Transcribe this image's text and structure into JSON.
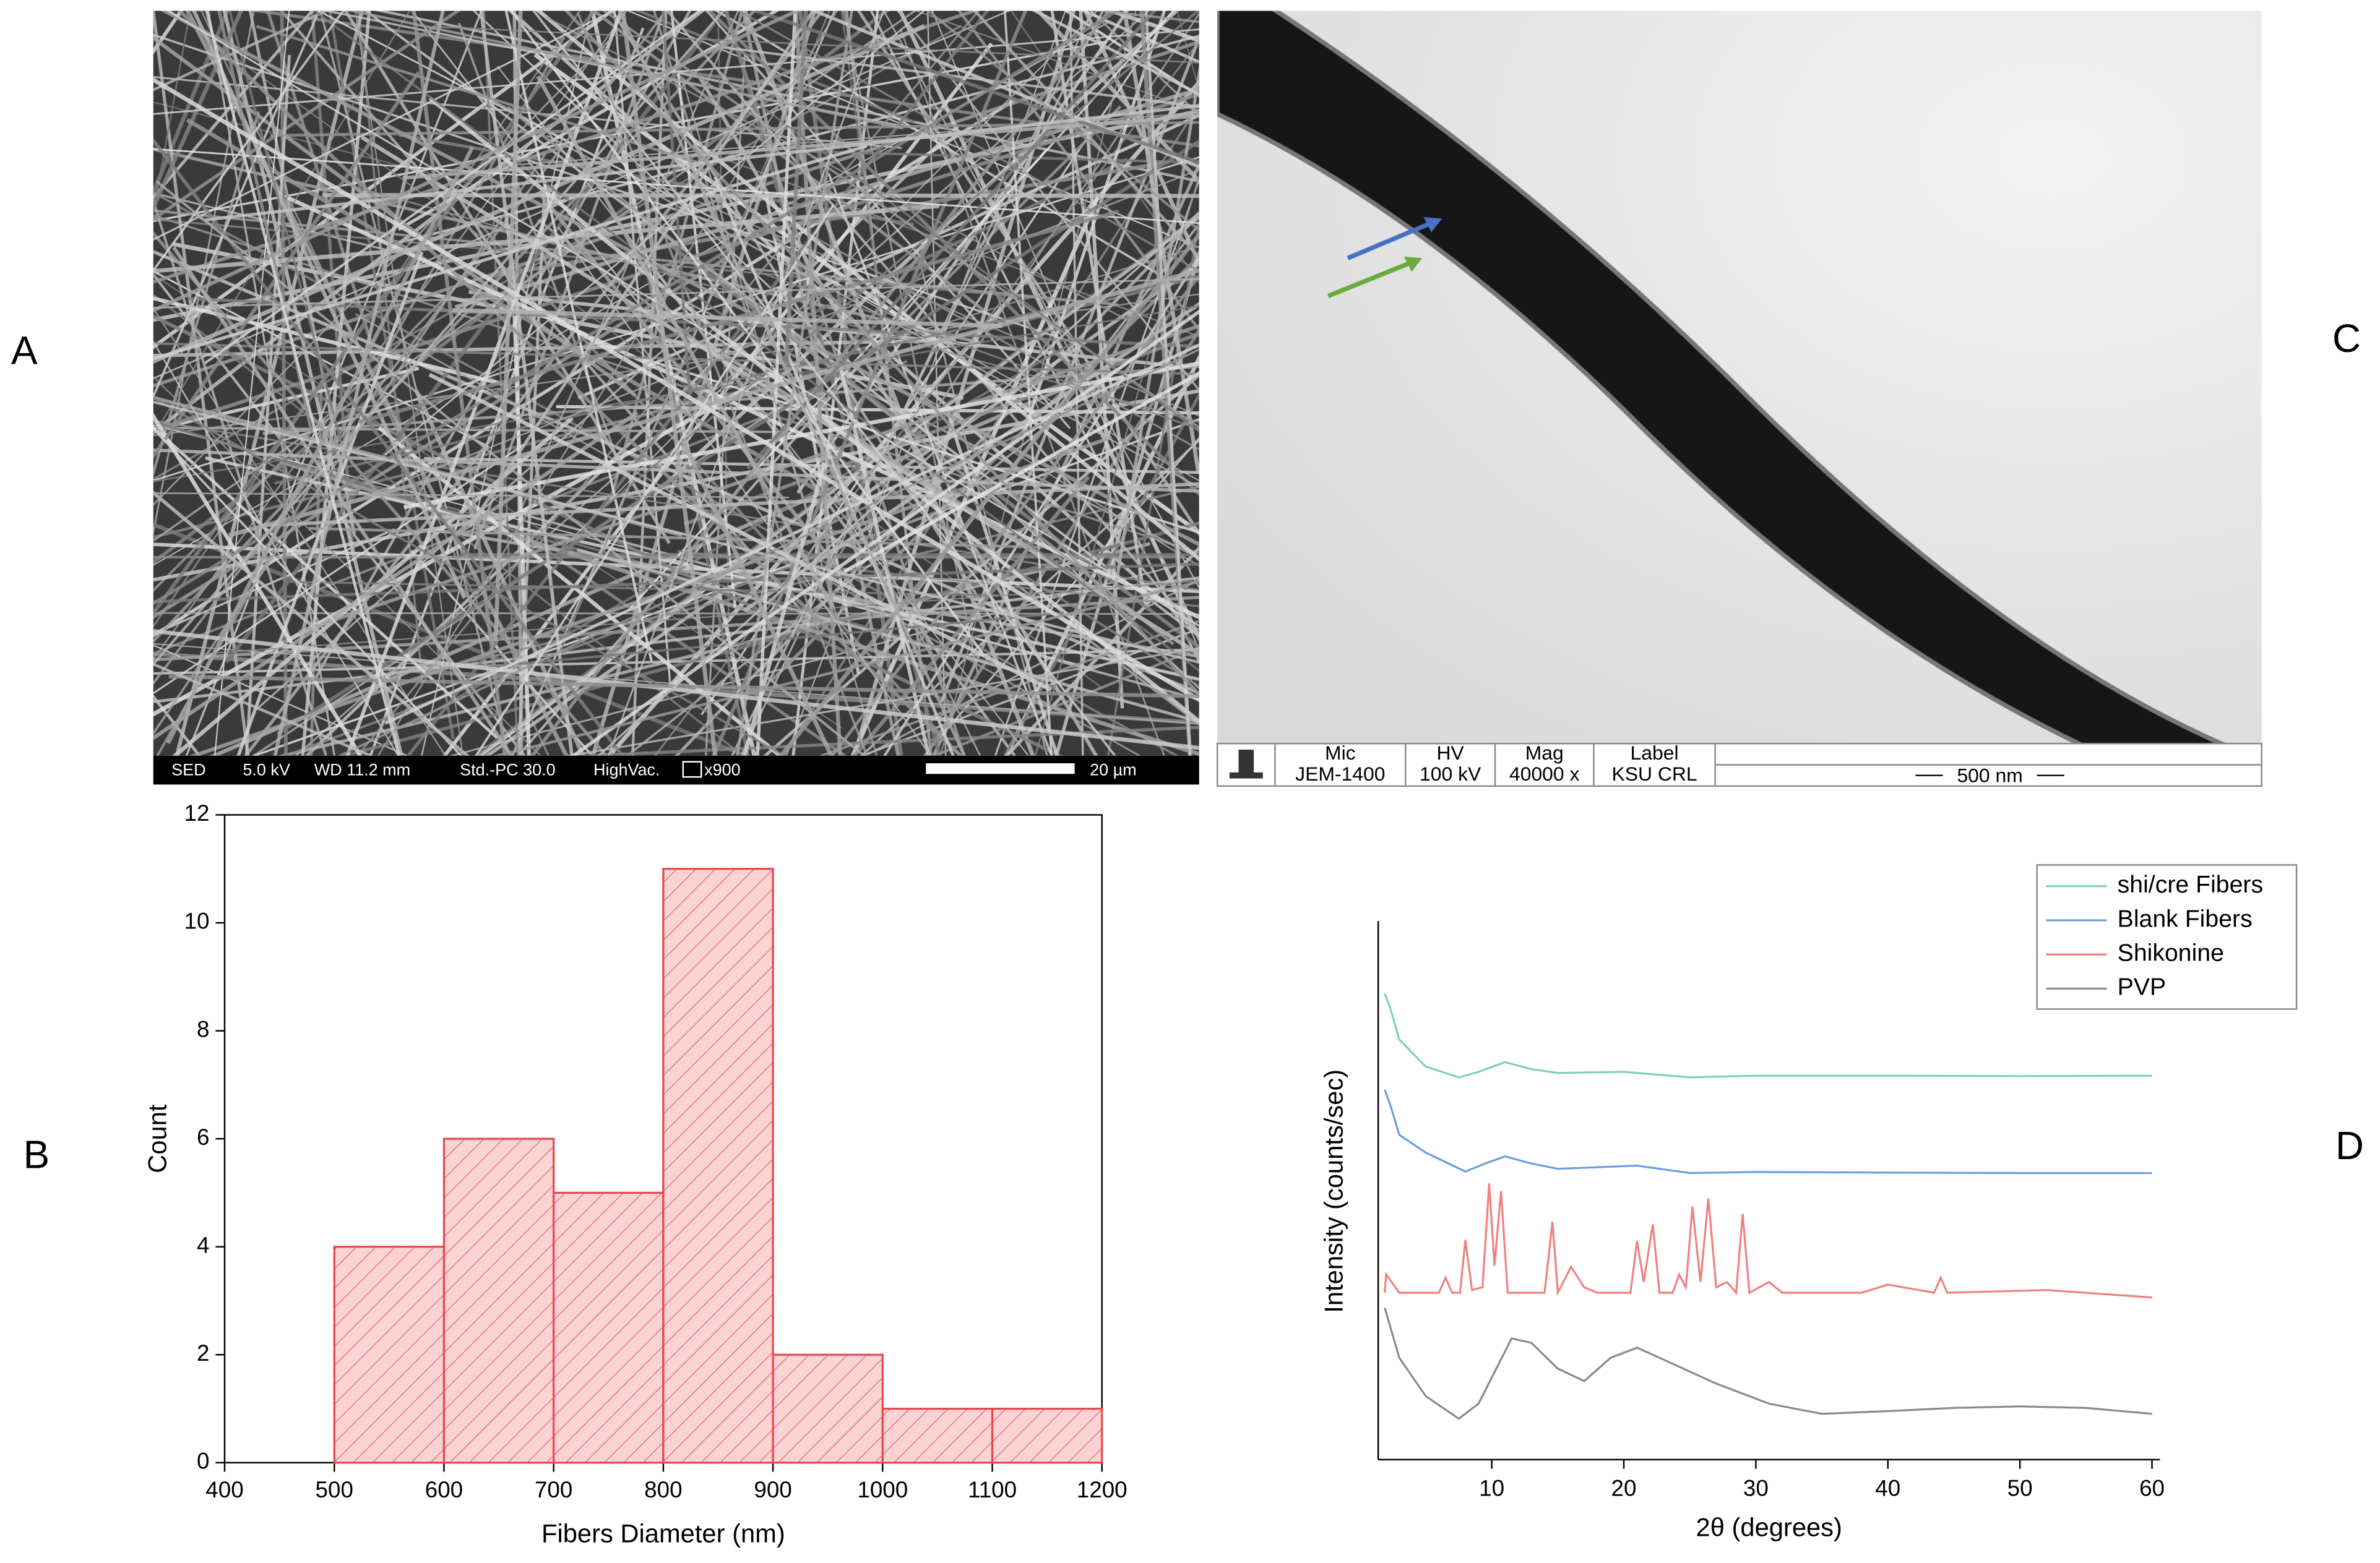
{
  "panel_labels": [
    "A",
    "B",
    "C",
    "D"
  ],
  "sem_bar": {
    "items": [
      "SED",
      "5.0 kV",
      "WD 11.2 mm",
      "Std.-PC 30.0",
      "HighVac.",
      "x900"
    ],
    "scale": "20 µm"
  },
  "tem_bar": {
    "headers": [
      "Mic",
      "HV",
      "Mag",
      "Label"
    ],
    "values": [
      "JEM-1400",
      "100 kV",
      "40000 x",
      "KSU CRL"
    ],
    "scale": "500 nm"
  },
  "chart_data": [
    {
      "type": "histogram",
      "xlabel": "Fibers Diameter (nm)",
      "ylabel": "Count",
      "bins": [
        500,
        600,
        700,
        800,
        900,
        1000,
        1100,
        1200
      ],
      "values": [
        4,
        6,
        5,
        11,
        2,
        1,
        1
      ],
      "color": "#e8474c",
      "xlim": [
        400,
        1200
      ],
      "ylim": [
        0,
        12
      ],
      "xticks": [
        400,
        500,
        600,
        700,
        800,
        900,
        1000,
        1100,
        1200
      ],
      "yticks": [
        0,
        2,
        4,
        6,
        8,
        10,
        12
      ],
      "grid": false
    },
    {
      "type": "line",
      "xlabel": "2θ (degrees)",
      "ylabel": "Intensity (counts/sec)",
      "xlim": [
        1.4,
        60.6
      ],
      "ylim": [
        0,
        100
      ],
      "xticks": [
        10,
        20,
        30,
        40,
        50,
        60
      ],
      "grid": false,
      "legend": "upper right",
      "series": [
        {
          "name": "shi/cre Fibers",
          "color": "#7fd1b0",
          "x": [
            1.9,
            2.3,
            3,
            5,
            7.5,
            9,
            11,
            13,
            15,
            20,
            25,
            30,
            40,
            50,
            60
          ],
          "values": [
            86.5,
            84,
            78,
            73,
            71,
            72,
            73.8,
            72.5,
            71.8,
            72,
            71,
            71.3,
            71.3,
            71.2,
            71.3
          ]
        },
        {
          "name": "Blank Fibers",
          "color": "#6a9ee0",
          "x": [
            1.9,
            2.3,
            3,
            5,
            8,
            9.5,
            11,
            13,
            15,
            21,
            25,
            30,
            40,
            50,
            60
          ],
          "values": [
            68.7,
            66,
            60.3,
            57,
            53.5,
            55,
            56.3,
            55,
            54,
            54.6,
            53.2,
            53.4,
            53.3,
            53.2,
            53.2
          ]
        },
        {
          "name": "Shikonine",
          "color": "#f08080",
          "x": [
            1.9,
            2,
            3,
            6,
            6.5,
            7,
            7.6,
            8,
            8.5,
            9.3,
            9.8,
            10.2,
            10.7,
            11.2,
            14,
            14.6,
            15,
            16,
            17,
            18,
            20.5,
            21,
            21.5,
            22.2,
            22.7,
            23.7,
            24.2,
            24.7,
            25.2,
            25.8,
            26.4,
            27,
            27.8,
            28.5,
            29,
            29.5,
            31,
            32,
            38,
            40,
            43.5,
            44,
            44.5,
            52,
            60
          ],
          "values": [
            31,
            34.4,
            31,
            31,
            33.8,
            31,
            31,
            40.8,
            31.5,
            32,
            51.3,
            36,
            49.9,
            31,
            31,
            44.2,
            31,
            35.8,
            32,
            31,
            31,
            40.6,
            33,
            43.7,
            31,
            31,
            34.4,
            32,
            47,
            33,
            48.5,
            32,
            33,
            31,
            45.6,
            31,
            33,
            31,
            31,
            32.5,
            31,
            33.8,
            31,
            31.5,
            30.1
          ]
        },
        {
          "name": "PVP",
          "color": "#8a8a8a",
          "x": [
            1.9,
            3,
            5,
            7.5,
            9,
            11.5,
            13,
            15,
            17,
            19,
            21,
            23,
            27,
            31,
            35,
            40,
            45,
            50,
            55,
            60
          ],
          "values": [
            28.2,
            18.9,
            11.8,
            7.6,
            10.4,
            22.5,
            21.7,
            16.9,
            14.6,
            18.9,
            20.8,
            18.6,
            14.1,
            10.4,
            8.5,
            9,
            9.6,
            9.9,
            9.6,
            8.5
          ]
        }
      ]
    }
  ]
}
